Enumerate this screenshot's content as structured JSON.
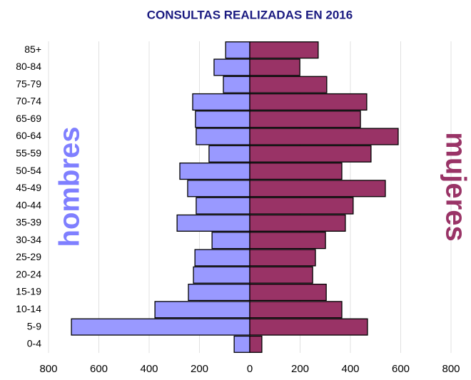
{
  "chart_data": {
    "type": "pyramid",
    "title": "CONSULTAS REALIZADAS EN 2016",
    "categories": [
      "0-4",
      "5-9",
      "10-14",
      "15-19",
      "20-24",
      "25-29",
      "30-34",
      "35-39",
      "40-44",
      "45-49",
      "50-54",
      "55-59",
      "60-64",
      "65-69",
      "70-74",
      "75-79",
      "80-84",
      "85+"
    ],
    "series": [
      {
        "name": "hombres",
        "color": "#9999ff",
        "values": [
          -62,
          -709,
          -377,
          -244,
          -224,
          -218,
          -150,
          -289,
          -213,
          -247,
          -278,
          -162,
          -213,
          -216,
          -227,
          -105,
          -142,
          -96
        ]
      },
      {
        "name": "mujeres",
        "color": "#993366",
        "values": [
          48,
          468,
          366,
          304,
          250,
          261,
          301,
          380,
          411,
          539,
          366,
          482,
          590,
          440,
          465,
          306,
          199,
          272
        ]
      }
    ],
    "xlim": [
      -800,
      800
    ],
    "xticks": [
      {
        "value": -800,
        "label": "800"
      },
      {
        "value": -600,
        "label": "600"
      },
      {
        "value": -400,
        "label": "400"
      },
      {
        "value": -200,
        "label": "200"
      },
      0,
      200,
      400,
      600,
      800
    ],
    "grid": true
  }
}
